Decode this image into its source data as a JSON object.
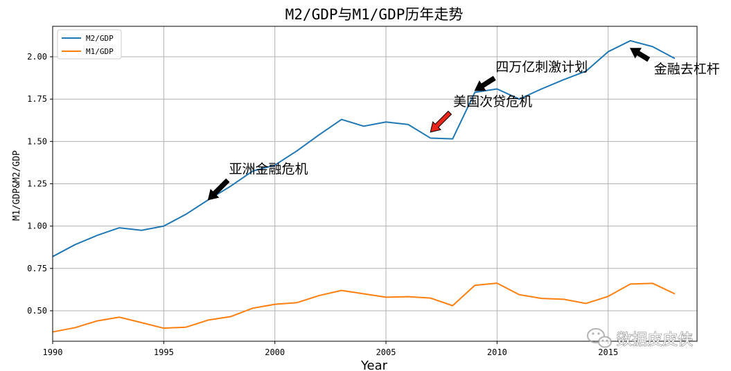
{
  "chart_data": {
    "type": "line",
    "title": "M2/GDP与M1/GDP历年走势",
    "xlabel": "Year",
    "ylabel": "M1/GDP&M2/GDP",
    "xlim": [
      1990,
      2019
    ],
    "ylim": [
      0.32,
      2.18
    ],
    "grid": true,
    "legend_position": "top-left",
    "x_ticks": [
      1990,
      1995,
      2000,
      2005,
      2010,
      2015
    ],
    "x_tick_labels": [
      "1990",
      "1995",
      "2000",
      "2005",
      "2010",
      "2015"
    ],
    "y_ticks": [
      0.5,
      0.75,
      1.0,
      1.25,
      1.5,
      1.75,
      2.0
    ],
    "y_tick_labels": [
      "0.50",
      "0.75",
      "1.00",
      "1.25",
      "1.50",
      "1.75",
      "2.00"
    ],
    "x": [
      1990,
      1991,
      1992,
      1993,
      1994,
      1995,
      1996,
      1997,
      1998,
      1999,
      2000,
      2001,
      2002,
      2003,
      2004,
      2005,
      2006,
      2007,
      2008,
      2009,
      2010,
      2011,
      2012,
      2013,
      2014,
      2015,
      2016,
      2017,
      2018
    ],
    "series": [
      {
        "name": "M2/GDP",
        "color": "#1f77b4",
        "values": [
          0.82,
          0.89,
          0.945,
          0.99,
          0.975,
          1.0,
          1.07,
          1.155,
          1.235,
          1.325,
          1.36,
          1.445,
          1.54,
          1.63,
          1.59,
          1.615,
          1.6,
          1.52,
          1.515,
          1.79,
          1.81,
          1.75,
          1.81,
          1.865,
          1.915,
          2.03,
          2.095,
          2.06,
          1.99
        ]
      },
      {
        "name": "M1/GDP",
        "color": "#ff7f0e",
        "values": [
          0.375,
          0.4,
          0.44,
          0.462,
          0.43,
          0.397,
          0.403,
          0.445,
          0.465,
          0.515,
          0.538,
          0.548,
          0.59,
          0.62,
          0.6,
          0.58,
          0.583,
          0.575,
          0.53,
          0.65,
          0.663,
          0.595,
          0.573,
          0.568,
          0.543,
          0.585,
          0.658,
          0.662,
          0.6
        ]
      }
    ],
    "annotations": [
      {
        "text": "亚洲金融危机",
        "point": [
          1997,
          1.155
        ],
        "arrow_color": "#000000"
      },
      {
        "text": "美国次贷危机",
        "point": [
          2007,
          1.555
        ],
        "arrow_color": "#e8251b"
      },
      {
        "text": "四万亿刺激计划",
        "point": [
          2009,
          1.8
        ],
        "arrow_color": "#000000"
      },
      {
        "text": "金融去杠杆",
        "point": [
          2016,
          2.05
        ],
        "arrow_color": "#000000"
      }
    ]
  },
  "watermark": {
    "text": "数据皮皮侠",
    "icon": "wechat-icon"
  }
}
